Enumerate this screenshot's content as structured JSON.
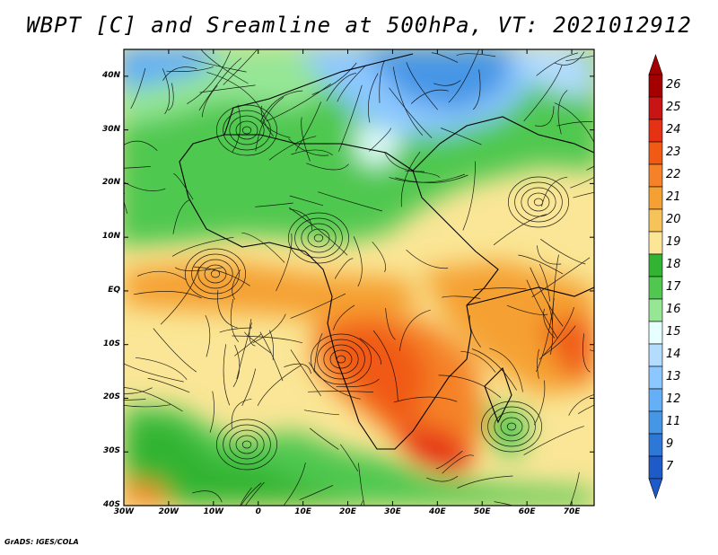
{
  "title": "WBPT [C] and Sreamline at 500hPa, VT: 2021012912",
  "credit": "GrADS: IGES/COLA",
  "map": {
    "lat_ticks": [
      "40N",
      "30N",
      "20N",
      "10N",
      "EQ",
      "10S",
      "20S",
      "30S",
      "40S"
    ],
    "lon_ticks": [
      "30W",
      "20W",
      "10W",
      "0",
      "10E",
      "20E",
      "30E",
      "40E",
      "50E",
      "60E",
      "70E"
    ],
    "lat_range": [
      -40,
      45
    ],
    "lon_range": [
      -30,
      75
    ]
  },
  "colorbar": {
    "labels": [
      "26",
      "25",
      "24",
      "23",
      "22",
      "21",
      "20",
      "19",
      "18",
      "17",
      "16",
      "15",
      "14",
      "13",
      "12",
      "11",
      "9",
      "7"
    ],
    "colors": [
      "#a50000",
      "#c81414",
      "#e63214",
      "#f05a14",
      "#f58228",
      "#f5a032",
      "#f5c35a",
      "#fae696",
      "#32b432",
      "#50c850",
      "#96e696",
      "#e6ffff",
      "#b4dcff",
      "#8cc8ff",
      "#64aff5",
      "#4696e6",
      "#2d78d7",
      "#1e5ac8"
    ]
  }
}
